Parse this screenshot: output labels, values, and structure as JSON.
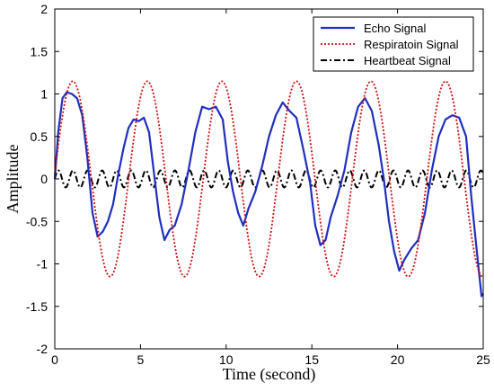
{
  "chart_data": {
    "type": "line",
    "xlabel": "Time (second)",
    "ylabel": "Amplitude",
    "xlim": [
      0,
      25
    ],
    "ylim": [
      -2,
      2
    ],
    "xticks": [
      0,
      5,
      10,
      15,
      20,
      25
    ],
    "yticks": [
      -2,
      -1.5,
      -1,
      -0.5,
      0,
      0.5,
      1,
      1.5,
      2
    ],
    "xtick_labels": [
      "0",
      "5",
      "10",
      "15",
      "20",
      "25"
    ],
    "ytick_labels": [
      "-2",
      "-1.5",
      "-1",
      "-0.5",
      "0",
      "0.5",
      "1",
      "1.5",
      "2"
    ],
    "grid": false,
    "legend_position": "top-right",
    "series": [
      {
        "name": "Echo Signal",
        "color": "#1f2fbf",
        "style": "solid",
        "x": [
          0,
          0.2,
          0.45,
          0.7,
          1.0,
          1.3,
          1.6,
          1.9,
          2.2,
          2.5,
          2.8,
          3.1,
          3.4,
          3.7,
          4.0,
          4.3,
          4.6,
          4.9,
          5.2,
          5.5,
          5.8,
          6.1,
          6.4,
          6.7,
          7.0,
          7.4,
          7.8,
          8.2,
          8.6,
          9.0,
          9.4,
          9.8,
          10.1,
          10.4,
          10.7,
          11.0,
          11.3,
          11.7,
          12.1,
          12.5,
          12.9,
          13.3,
          13.7,
          14.1,
          14.5,
          14.9,
          15.2,
          15.5,
          15.8,
          16.1,
          16.5,
          16.9,
          17.3,
          17.7,
          18.1,
          18.5,
          18.9,
          19.2,
          19.5,
          19.8,
          20.1,
          20.4,
          20.8,
          21.2,
          21.6,
          22.0,
          22.4,
          22.8,
          23.2,
          23.6,
          24.0,
          24.3,
          24.6,
          24.9,
          25.0
        ],
        "y": [
          0.0,
          0.55,
          0.95,
          1.02,
          1.0,
          0.95,
          0.75,
          0.25,
          -0.4,
          -0.68,
          -0.62,
          -0.5,
          -0.3,
          0.05,
          0.35,
          0.6,
          0.7,
          0.68,
          0.72,
          0.55,
          0.05,
          -0.45,
          -0.72,
          -0.6,
          -0.55,
          -0.3,
          0.1,
          0.55,
          0.85,
          0.82,
          0.85,
          0.7,
          0.2,
          -0.15,
          -0.4,
          -0.55,
          -0.35,
          -0.15,
          0.15,
          0.5,
          0.75,
          0.9,
          0.8,
          0.72,
          0.35,
          -0.05,
          -0.55,
          -0.78,
          -0.72,
          -0.45,
          -0.2,
          0.1,
          0.55,
          0.85,
          0.95,
          0.8,
          0.4,
          0.0,
          -0.5,
          -0.85,
          -1.08,
          -0.95,
          -0.82,
          -0.72,
          -0.4,
          0.1,
          0.5,
          0.7,
          0.75,
          0.72,
          0.5,
          -0.2,
          -0.8,
          -1.38,
          -1.35
        ]
      },
      {
        "name": "Respiratoin Signal",
        "color": "#cc1111",
        "style": "dotted",
        "model": {
          "amplitude": 1.15,
          "period": 4.35,
          "phase_shift_s": 1.05
        },
        "x": [
          0,
          1,
          2,
          3,
          4,
          5,
          6,
          7,
          8,
          9,
          10,
          11,
          12,
          13,
          14,
          15,
          16,
          17,
          18,
          19,
          20,
          21,
          22,
          23,
          24,
          25
        ],
        "y": [
          -0.1,
          1.15,
          0.1,
          -1.1,
          -0.3,
          1.05,
          0.35,
          -1.1,
          -0.4,
          1.05,
          0.45,
          -1.1,
          -0.5,
          1.0,
          0.55,
          -1.1,
          -0.55,
          1.0,
          0.7,
          -1.05,
          -0.6,
          1.1,
          0.8,
          -1.05,
          -0.8,
          -1.22
        ]
      },
      {
        "name": "Heartbeat Signal",
        "color": "#000000",
        "style": "dashdot",
        "model": {
          "amplitude": 0.1,
          "period": 0.85
        },
        "x": [
          0,
          0.2,
          0.4,
          0.6,
          0.8,
          1.0,
          1.2,
          1.4,
          1.6,
          1.8,
          2.0
        ],
        "y": [
          0.0,
          0.1,
          0.0,
          -0.1,
          0.0,
          0.1,
          0.0,
          -0.1,
          0.0,
          0.1,
          0.0
        ]
      }
    ]
  }
}
